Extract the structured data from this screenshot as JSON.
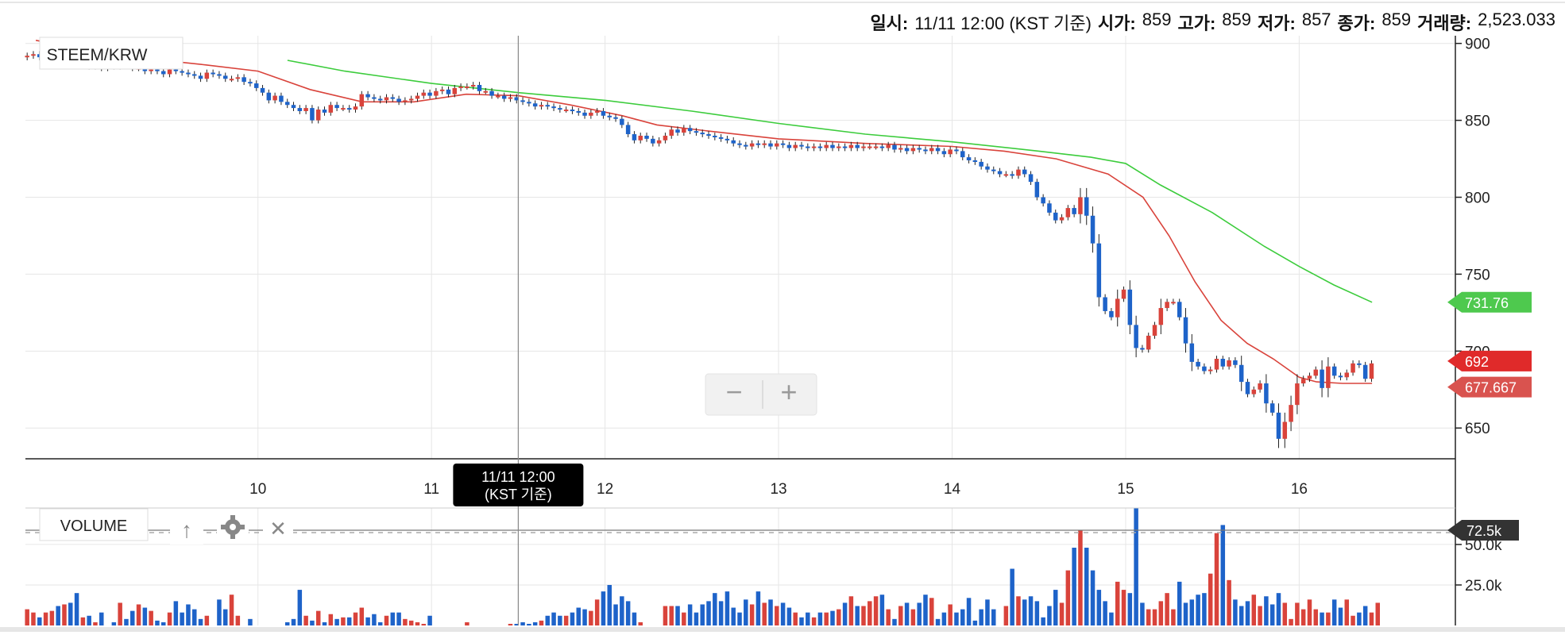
{
  "info_bar": {
    "date_label": "일시:",
    "date_value": "11/11 12:00 (KST 기준)",
    "open_label": "시가:",
    "open_value": "859",
    "high_label": "고가:",
    "high_value": "859",
    "low_label": "저가:",
    "low_value": "857",
    "close_label": "종가:",
    "close_value": "859",
    "volume_label": "거래량:",
    "volume_value": "2,523.033"
  },
  "symbol_label": "STEEM/KRW",
  "volume_label": "VOLUME",
  "volume_controls": {
    "up_icon": "↑",
    "gear_icon": "gear-icon",
    "close_icon": "✕"
  },
  "zoom_controls": {
    "minus": "−",
    "plus": "+"
  },
  "crosshair_label": {
    "line1": "11/11 12:00",
    "line2": "(KST 기준)",
    "time": 11.5
  },
  "price_axis": {
    "ticks": [
      "650",
      "700",
      "750",
      "800",
      "850",
      "900"
    ],
    "range": [
      630,
      905
    ]
  },
  "volume_axis": {
    "ticks": [
      "25.0k",
      "50.0k"
    ],
    "max_label": "72.5k",
    "range": [
      0,
      72500
    ]
  },
  "time_axis": {
    "ticks": [
      "10",
      "11",
      "12",
      "13",
      "14",
      "15",
      "16"
    ],
    "range": [
      8.66,
      16.9
    ]
  },
  "price_tags": {
    "ma_long": {
      "value": 731.76,
      "text": "731.76",
      "color": "#4ec94e"
    },
    "last": {
      "value": 692,
      "text": "692",
      "color": "#e02a2a"
    },
    "ma_short": {
      "value": 677.667,
      "text": "677.667",
      "color": "#d9534f"
    }
  },
  "colors": {
    "up": "#d9433b",
    "down": "#1e63c9",
    "ma_short": "#d9433b",
    "ma_long": "#3ccc3c",
    "grid": "#e6e6e6"
  },
  "chart_data": [
    {
      "type": "candlestick",
      "title": "STEEM/KRW",
      "x_unit": "day",
      "closes": [
        892,
        893,
        891,
        893,
        894,
        890,
        892,
        888,
        887,
        888,
        885,
        885,
        884,
        886,
        885,
        887,
        886,
        884,
        884,
        882,
        883,
        882,
        880,
        883,
        882,
        881,
        880,
        879,
        877,
        881,
        880,
        879,
        877,
        877,
        878,
        875,
        874,
        871,
        868,
        863,
        866,
        862,
        860,
        858,
        856,
        858,
        850,
        857,
        855,
        860,
        858,
        858,
        857,
        859,
        867,
        865,
        864,
        863,
        865,
        864,
        862,
        863,
        864,
        866,
        868,
        866,
        869,
        870,
        867,
        871,
        872,
        872,
        873,
        869,
        869,
        866,
        866,
        864,
        865,
        863,
        862,
        861,
        859,
        860,
        859,
        858,
        857,
        857,
        856,
        855,
        853,
        855,
        856,
        853,
        852,
        851,
        847,
        841,
        837,
        840,
        838,
        835,
        837,
        840,
        844,
        842,
        845,
        843,
        842,
        841,
        840,
        839,
        838,
        837,
        835,
        834,
        833,
        835,
        834,
        835,
        833,
        835,
        834,
        832,
        834,
        833,
        832,
        833,
        832,
        834,
        832,
        833,
        832,
        834,
        832,
        833,
        833,
        833,
        832,
        834,
        831,
        832,
        830,
        832,
        831,
        830,
        832,
        830,
        828,
        831,
        830,
        826,
        824,
        823,
        820,
        818,
        817,
        815,
        815,
        814,
        818,
        815,
        810,
        800,
        796,
        790,
        785,
        787,
        793,
        789,
        800,
        788,
        770,
        735,
        726,
        722,
        734,
        740,
        717,
        702,
        701,
        710,
        717,
        728,
        732,
        732,
        722,
        705,
        693,
        690,
        687,
        688,
        695,
        690,
        694,
        691,
        680,
        672,
        675,
        679,
        666,
        660,
        643,
        654,
        665,
        679,
        682,
        684,
        688,
        676,
        690,
        684,
        683,
        686,
        692,
        691,
        682,
        692
      ],
      "start_time": 8.67,
      "step": 0.0357
    },
    {
      "type": "line",
      "name": "",
      "series_short_ma": [
        {
          "x": 8.72,
          "y": 902
        },
        {
          "x": 9.2,
          "y": 892
        },
        {
          "x": 9.7,
          "y": 886
        },
        {
          "x": 10.0,
          "y": 882
        },
        {
          "x": 10.3,
          "y": 870
        },
        {
          "x": 10.6,
          "y": 862
        },
        {
          "x": 10.9,
          "y": 862
        },
        {
          "x": 11.2,
          "y": 867
        },
        {
          "x": 11.5,
          "y": 866
        },
        {
          "x": 11.8,
          "y": 860
        },
        {
          "x": 12.1,
          "y": 853
        },
        {
          "x": 12.3,
          "y": 847
        },
        {
          "x": 12.6,
          "y": 843
        },
        {
          "x": 13.0,
          "y": 838
        },
        {
          "x": 13.5,
          "y": 835
        },
        {
          "x": 14.0,
          "y": 833
        },
        {
          "x": 14.3,
          "y": 830
        },
        {
          "x": 14.6,
          "y": 825
        },
        {
          "x": 14.9,
          "y": 815
        },
        {
          "x": 15.1,
          "y": 800
        },
        {
          "x": 15.25,
          "y": 775
        },
        {
          "x": 15.4,
          "y": 745
        },
        {
          "x": 15.55,
          "y": 720
        },
        {
          "x": 15.7,
          "y": 705
        },
        {
          "x": 15.85,
          "y": 695
        },
        {
          "x": 16.0,
          "y": 683
        },
        {
          "x": 16.1,
          "y": 680
        },
        {
          "x": 16.25,
          "y": 679
        },
        {
          "x": 16.42,
          "y": 679
        }
      ],
      "series_long_ma": [
        {
          "x": 10.17,
          "y": 889
        },
        {
          "x": 10.5,
          "y": 882
        },
        {
          "x": 11.0,
          "y": 874
        },
        {
          "x": 11.5,
          "y": 868
        },
        {
          "x": 12.0,
          "y": 863
        },
        {
          "x": 12.5,
          "y": 856
        },
        {
          "x": 13.0,
          "y": 848
        },
        {
          "x": 13.5,
          "y": 841
        },
        {
          "x": 14.0,
          "y": 836
        },
        {
          "x": 14.5,
          "y": 830
        },
        {
          "x": 14.8,
          "y": 826
        },
        {
          "x": 15.0,
          "y": 822
        },
        {
          "x": 15.2,
          "y": 808
        },
        {
          "x": 15.5,
          "y": 790
        },
        {
          "x": 15.8,
          "y": 768
        },
        {
          "x": 16.0,
          "y": 755
        },
        {
          "x": 16.2,
          "y": 743
        },
        {
          "x": 16.42,
          "y": 731.76
        }
      ]
    },
    {
      "type": "bar",
      "name": "VOLUME",
      "volumes": [
        10,
        8,
        5,
        8,
        9,
        12,
        13,
        14,
        20,
        5,
        6,
        2,
        8,
        0,
        2,
        14,
        4,
        9,
        13,
        11,
        9,
        3,
        2,
        8,
        15,
        8,
        13,
        10,
        4,
        6,
        0,
        16,
        10,
        19,
        6,
        0,
        4,
        0,
        0,
        0,
        0,
        0,
        2,
        4,
        22,
        6,
        3,
        9,
        2,
        7,
        4,
        5,
        5,
        8,
        11,
        5,
        7,
        2,
        6,
        8,
        8,
        4,
        3,
        2,
        1,
        6,
        0,
        0,
        0,
        0,
        0,
        2,
        0,
        0,
        0,
        0,
        0,
        0,
        1,
        1,
        2,
        1,
        2,
        3,
        6,
        8,
        6,
        6,
        8,
        11,
        10,
        9,
        16,
        21,
        25,
        13,
        18,
        15,
        8,
        2,
        0,
        0,
        0,
        12,
        12,
        12,
        8,
        13,
        8,
        13,
        15,
        20,
        15,
        21,
        11,
        8,
        16,
        13,
        21,
        14,
        16,
        12,
        14,
        11,
        8,
        5,
        8,
        5,
        8,
        8,
        9,
        10,
        14,
        18,
        12,
        12,
        15,
        18,
        19,
        10,
        4,
        12,
        14,
        10,
        14,
        19,
        17,
        4,
        8,
        13,
        8,
        10,
        17,
        3,
        10,
        16,
        10,
        0,
        12,
        35,
        18,
        16,
        18,
        15,
        5,
        12,
        22,
        14,
        34,
        48,
        59,
        48,
        34,
        22,
        15,
        8,
        27,
        22,
        20,
        72.5,
        14,
        10,
        10,
        15,
        20,
        10,
        27,
        14,
        16,
        19,
        20,
        32,
        57,
        62,
        28,
        16,
        12,
        15,
        19,
        12,
        18,
        13,
        20,
        14,
        4,
        14,
        10,
        16,
        10,
        8,
        8,
        16,
        11,
        16,
        6,
        8,
        12,
        8,
        14
      ]
    }
  ]
}
